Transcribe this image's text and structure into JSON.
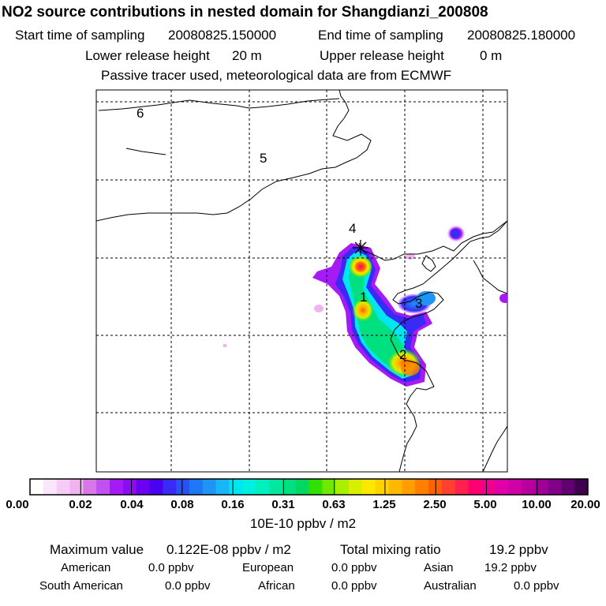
{
  "header": {
    "title": "NO2 source contributions in nested domain for Shangdianzi_200808",
    "start_label": "Start time of sampling",
    "start_value": "20080825.150000",
    "end_label": "End time of sampling",
    "end_value": "20080825.180000",
    "lower_label": "Lower release height",
    "lower_value": "20 m",
    "upper_label": "Upper release height",
    "upper_value": "0 m",
    "note": "Passive tracer used, meteorological data are from ECMWF"
  },
  "map": {
    "region_labels": [
      "6",
      "5",
      "4",
      "1",
      "3",
      "2"
    ],
    "receptor_icon": "asterisk-star-icon"
  },
  "colorbar": {
    "ticks": [
      "0.00",
      "0.02",
      "0.04",
      "0.08",
      "0.16",
      "0.31",
      "0.63",
      "1.25",
      "2.50",
      "5.00",
      "10.00",
      "20.00"
    ],
    "colors": [
      "#ffffff",
      "#fbe6fb",
      "#f6ccf6",
      "#f0b3f0",
      "#d778e6",
      "#c050f0",
      "#a61bf5",
      "#8c0bf5",
      "#6b00f0",
      "#4a00f0",
      "#3a2af5",
      "#2a50f5",
      "#1e78f5",
      "#1e95f5",
      "#19b5f5",
      "#00e6f0",
      "#00f0e0",
      "#00f0c0",
      "#00e8a0",
      "#00e080",
      "#00d860",
      "#30e000",
      "#70e800",
      "#a8f000",
      "#d8f000",
      "#ffe800",
      "#ffd200",
      "#ffb800",
      "#ff9e00",
      "#ff8000",
      "#ff6000",
      "#ff4030",
      "#ff2050",
      "#ff0070",
      "#f00090",
      "#e000a8",
      "#d000a8",
      "#b800a0",
      "#a00098",
      "#800088",
      "#600070",
      "#400050"
    ],
    "unit": "10E-10 ppbv / m2"
  },
  "summary": {
    "max_label": "Maximum value",
    "max_value": "0.122E-08 ppbv / m2",
    "total_label": "Total mixing ratio",
    "total_value": "19.2 ppbv",
    "regions": [
      {
        "name": "American",
        "value": "0.0 ppbv"
      },
      {
        "name": "European",
        "value": "0.0 ppbv"
      },
      {
        "name": "Asian",
        "value": "19.2 ppbv"
      },
      {
        "name": "South American",
        "value": "0.0 ppbv"
      },
      {
        "name": "African",
        "value": "0.0 ppbv"
      },
      {
        "name": "Australian",
        "value": "0.0 ppbv"
      }
    ]
  }
}
